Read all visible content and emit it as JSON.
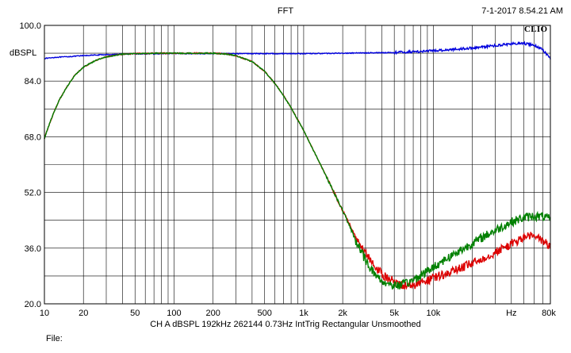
{
  "header": {
    "title": "FFT",
    "timestamp": "7-1-2017 8.54.21 AM",
    "logo": "CLIO"
  },
  "footer": {
    "info": "CH A  dBSPL  192kHz  262144  0.73Hz  IntTrig  Rectangular  Unsmoothed",
    "file": "File:"
  },
  "chart_data": {
    "type": "line",
    "title": "FFT",
    "ylabel": "dBSPL",
    "xlabel": "",
    "xscale": "log",
    "xlim": [
      10,
      80000
    ],
    "ylim": [
      20,
      100
    ],
    "grid": true,
    "yticks": [
      {
        "value": 100,
        "label": "100.0"
      },
      {
        "value": 84,
        "label": "84.0"
      },
      {
        "value": 68,
        "label": "68.0"
      },
      {
        "value": 52,
        "label": "52.0"
      },
      {
        "value": 36,
        "label": "36.0"
      },
      {
        "value": 20,
        "label": "20.0"
      }
    ],
    "xticks": [
      {
        "value": 10,
        "label": "10"
      },
      {
        "value": 20,
        "label": "20"
      },
      {
        "value": 50,
        "label": "50"
      },
      {
        "value": 100,
        "label": "100"
      },
      {
        "value": 200,
        "label": "200"
      },
      {
        "value": 500,
        "label": "500"
      },
      {
        "value": 1000,
        "label": "1k"
      },
      {
        "value": 2000,
        "label": "2k"
      },
      {
        "value": 5000,
        "label": "5k"
      },
      {
        "value": 10000,
        "label": "10k"
      },
      {
        "value": 40000,
        "label": "Hz"
      },
      {
        "value": 80000,
        "label": "80k"
      }
    ],
    "series": [
      {
        "color": "#0000dd",
        "x": [
          10,
          12,
          15,
          20,
          30,
          50,
          100,
          200,
          500,
          1000,
          2000,
          5000,
          10000,
          20000,
          30000,
          40000,
          50000,
          60000,
          70000,
          80000
        ],
        "y": [
          90.5,
          90.8,
          91.0,
          91.3,
          91.6,
          91.8,
          91.9,
          91.9,
          91.9,
          91.9,
          92.0,
          92.2,
          92.7,
          93.5,
          94.2,
          94.7,
          94.8,
          94.3,
          93.0,
          90.5
        ]
      },
      {
        "color": "#dd0000",
        "x": [
          10,
          11,
          12,
          13,
          15,
          17,
          20,
          25,
          30,
          40,
          50,
          70,
          100,
          150,
          200,
          250,
          300,
          400,
          500,
          600,
          700,
          800,
          1000,
          1200,
          1500,
          2000,
          2500,
          3000,
          3500,
          4000,
          5000,
          6000,
          7000,
          8000,
          10000,
          12000,
          15000,
          20000,
          25000,
          30000,
          40000,
          50000,
          55000,
          60000,
          70000,
          80000
        ],
        "y": [
          67.5,
          72.0,
          75.5,
          78.5,
          82.5,
          85.5,
          88.0,
          90.0,
          91.0,
          91.7,
          91.9,
          92.0,
          92.0,
          92.0,
          92.0,
          91.8,
          91.3,
          89.6,
          86.8,
          83.3,
          79.8,
          76.3,
          69.8,
          63.8,
          56.5,
          46.8,
          39.5,
          34.3,
          31.0,
          28.5,
          26.3,
          25.3,
          25.4,
          26.0,
          27.3,
          28.4,
          29.7,
          31.6,
          33.3,
          34.8,
          37.2,
          39.0,
          39.6,
          39.3,
          38.2,
          36.3
        ]
      },
      {
        "color": "#008000",
        "x": [
          10,
          11,
          12,
          13,
          15,
          17,
          20,
          25,
          30,
          40,
          50,
          70,
          100,
          150,
          200,
          250,
          300,
          400,
          500,
          600,
          700,
          800,
          1000,
          1200,
          1500,
          2000,
          2500,
          3000,
          3500,
          4000,
          5000,
          6000,
          7000,
          8000,
          10000,
          12000,
          15000,
          20000,
          25000,
          30000,
          40000,
          50000,
          60000,
          70000,
          80000
        ],
        "y": [
          67.5,
          72.0,
          75.5,
          78.5,
          82.5,
          85.5,
          88.0,
          90.0,
          91.0,
          91.7,
          91.9,
          92.0,
          92.0,
          92.0,
          92.0,
          91.8,
          91.3,
          89.6,
          86.8,
          83.3,
          79.8,
          76.3,
          69.8,
          63.8,
          56.5,
          46.8,
          38.5,
          32.5,
          28.8,
          26.5,
          25.2,
          25.6,
          26.8,
          28.2,
          30.5,
          32.5,
          34.6,
          37.4,
          39.5,
          41.1,
          43.5,
          44.8,
          45.2,
          45.0,
          44.3
        ]
      }
    ]
  }
}
